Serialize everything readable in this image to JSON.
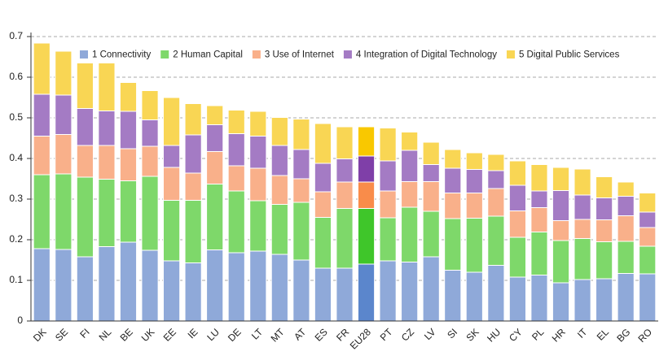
{
  "chart_data": {
    "type": "stacked_bar",
    "categories": [
      "DK",
      "SE",
      "FI",
      "NL",
      "BE",
      "UK",
      "EE",
      "IE",
      "LU",
      "DE",
      "LT",
      "MT",
      "AT",
      "ES",
      "FR",
      "EU28",
      "PT",
      "CZ",
      "LV",
      "SI",
      "SK",
      "HU",
      "CY",
      "PL",
      "HR",
      "IT",
      "EL",
      "BG",
      "RO"
    ],
    "series": [
      {
        "name": "1 Connectivity",
        "color": "#8fa9d9",
        "highlight_color": "#5b86cc",
        "values": [
          0.178,
          0.176,
          0.158,
          0.183,
          0.194,
          0.174,
          0.148,
          0.143,
          0.175,
          0.168,
          0.172,
          0.164,
          0.15,
          0.13,
          0.13,
          0.14,
          0.148,
          0.145,
          0.158,
          0.125,
          0.12,
          0.137,
          0.108,
          0.113,
          0.094,
          0.102,
          0.104,
          0.117,
          0.116
        ]
      },
      {
        "name": "2 Human Capital",
        "color": "#7ed86a",
        "highlight_color": "#3fc62a",
        "values": [
          0.182,
          0.186,
          0.196,
          0.166,
          0.151,
          0.182,
          0.149,
          0.154,
          0.162,
          0.152,
          0.124,
          0.123,
          0.142,
          0.125,
          0.147,
          0.137,
          0.106,
          0.135,
          0.112,
          0.127,
          0.133,
          0.121,
          0.098,
          0.106,
          0.104,
          0.101,
          0.091,
          0.079,
          0.068
        ]
      },
      {
        "name": "3 Use of Internet",
        "color": "#f9b08a",
        "highlight_color": "#f98c4a",
        "values": [
          0.095,
          0.097,
          0.078,
          0.083,
          0.079,
          0.074,
          0.081,
          0.067,
          0.08,
          0.062,
          0.08,
          0.071,
          0.058,
          0.063,
          0.065,
          0.065,
          0.066,
          0.063,
          0.073,
          0.063,
          0.062,
          0.068,
          0.065,
          0.06,
          0.049,
          0.047,
          0.054,
          0.063,
          0.046
        ]
      },
      {
        "name": "4 Integration of Digital Technology",
        "color": "#a47bc4",
        "highlight_color": "#7f3fa8",
        "values": [
          0.103,
          0.097,
          0.091,
          0.085,
          0.092,
          0.065,
          0.054,
          0.094,
          0.066,
          0.079,
          0.079,
          0.074,
          0.072,
          0.07,
          0.057,
          0.064,
          0.074,
          0.077,
          0.042,
          0.061,
          0.058,
          0.044,
          0.063,
          0.041,
          0.074,
          0.06,
          0.054,
          0.048,
          0.038
        ]
      },
      {
        "name": "5 Digital Public Services",
        "color": "#f9d654",
        "highlight_color": "#f9c800",
        "values": [
          0.126,
          0.108,
          0.113,
          0.119,
          0.071,
          0.072,
          0.118,
          0.077,
          0.047,
          0.058,
          0.061,
          0.069,
          0.075,
          0.098,
          0.079,
          0.072,
          0.081,
          0.045,
          0.055,
          0.046,
          0.041,
          0.04,
          0.06,
          0.065,
          0.057,
          0.064,
          0.052,
          0.035,
          0.047
        ]
      }
    ],
    "highlight_category": "EU28",
    "ylim": [
      0,
      0.7
    ],
    "yticks": [
      0,
      0.1,
      0.2,
      0.3,
      0.4,
      0.5,
      0.6,
      0.7
    ],
    "grid": true,
    "legend": "top"
  }
}
